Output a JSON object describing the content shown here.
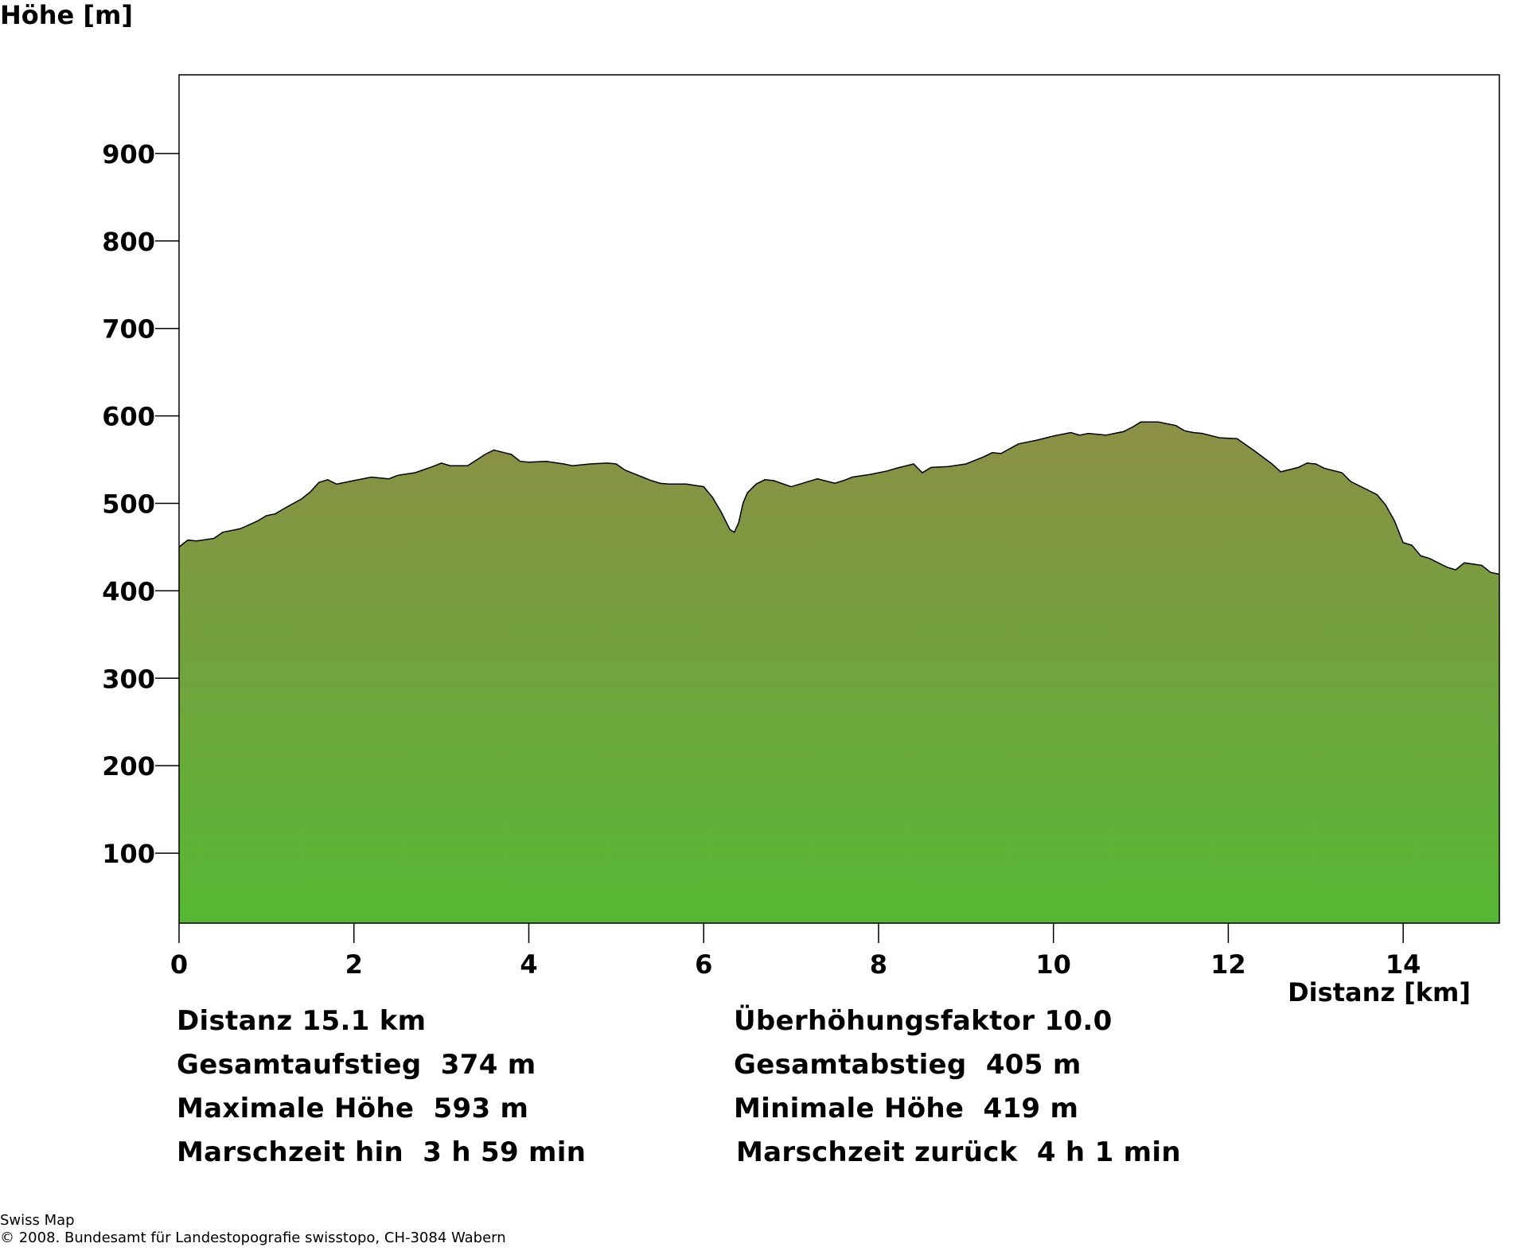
{
  "chart_data": {
    "type": "area",
    "ylabel": "Höhe [m]",
    "xlabel": "Distanz [km]",
    "xlim": [
      0,
      15.1
    ],
    "ylim": [
      20,
      990
    ],
    "y_ticks": [
      100,
      200,
      300,
      400,
      500,
      600,
      700,
      800,
      900
    ],
    "x_ticks": [
      0,
      2,
      4,
      6,
      8,
      10,
      12,
      14
    ],
    "fill_colors": {
      "top": "#8b8f45",
      "bottom": "#56b834"
    },
    "outline_color": "#000000",
    "series": [
      {
        "x": [
          0,
          0.1,
          0.2,
          0.4,
          0.5,
          0.7,
          0.9,
          1.0,
          1.1,
          1.2,
          1.4,
          1.5,
          1.6,
          1.7,
          1.8,
          2.0,
          2.2,
          2.4,
          2.5,
          2.7,
          2.9,
          3.0,
          3.1,
          3.3,
          3.5,
          3.6,
          3.8,
          3.9,
          4.0,
          4.2,
          4.4,
          4.5,
          4.7,
          4.9,
          5.0,
          5.1,
          5.3,
          5.4,
          5.5,
          5.6,
          5.8,
          6.0,
          6.1,
          6.2,
          6.3,
          6.35,
          6.4,
          6.45,
          6.5,
          6.6,
          6.7,
          6.8,
          7.0,
          7.1,
          7.3,
          7.5,
          7.6,
          7.7,
          7.9,
          8.1,
          8.2,
          8.4,
          8.5,
          8.6,
          8.8,
          9.0,
          9.2,
          9.3,
          9.4,
          9.6,
          9.8,
          10.0,
          10.2,
          10.3,
          10.4,
          10.6,
          10.8,
          10.9,
          11.0,
          11.2,
          11.4,
          11.5,
          11.6,
          11.7,
          11.9,
          12.1,
          12.3,
          12.5,
          12.6,
          12.8,
          12.9,
          13.0,
          13.1,
          13.3,
          13.4,
          13.6,
          13.7,
          13.8,
          13.9,
          14.0,
          14.1,
          14.2,
          14.3,
          14.5,
          14.6,
          14.7,
          14.9,
          15.0,
          15.1
        ],
        "y": [
          450,
          458,
          457,
          460,
          467,
          471,
          480,
          486,
          488,
          494,
          505,
          513,
          524,
          527,
          522,
          526,
          530,
          528,
          532,
          535,
          542,
          546,
          543,
          543,
          556,
          561,
          556,
          548,
          547,
          548,
          545,
          543,
          545,
          546,
          545,
          538,
          530,
          526,
          523,
          522,
          522,
          519,
          507,
          490,
          470,
          467,
          478,
          500,
          512,
          522,
          527,
          526,
          519,
          522,
          528,
          523,
          526,
          530,
          533,
          537,
          540,
          545,
          535,
          541,
          542,
          545,
          553,
          558,
          557,
          568,
          572,
          577,
          581,
          578,
          580,
          578,
          582,
          587,
          593,
          593,
          589,
          583,
          581,
          580,
          575,
          574,
          560,
          545,
          536,
          541,
          546,
          545,
          540,
          535,
          525,
          515,
          510,
          498,
          480,
          455,
          452,
          440,
          437,
          427,
          424,
          432,
          429,
          421,
          419
        ]
      }
    ]
  },
  "stats": {
    "distanz": "Distanz 15.1 km",
    "ueberhoehung": "Überhöhungsfaktor 10.0",
    "aufstieg": "Gesamtaufstieg  374 m",
    "abstieg": "Gesamtabstieg  405 m",
    "max_hoehe": "Maximale Höhe  593 m",
    "min_hoehe": "Minimale Höhe  419 m",
    "marschzeit_hin": "Marschzeit hin  3 h 59 min",
    "marschzeit_zurueck": "Marschzeit zurück  4 h 1 min"
  },
  "footer": {
    "line1": "Swiss Map",
    "line2": "© 2008. Bundesamt für Landestopografie swisstopo, CH-3084 Wabern"
  }
}
